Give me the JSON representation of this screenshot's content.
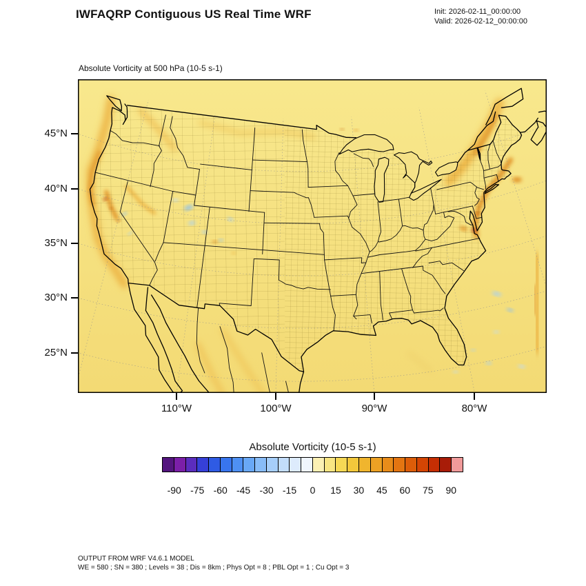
{
  "header": {
    "title": "IWFAQRP Contiguous US Real Time WRF",
    "init_label": "Init: 2026-02-11_00:00:00",
    "valid_label": "Valid: 2026-02-12_00:00:00"
  },
  "plot": {
    "subtitle": "Absolute Vorticity at 500 hPa   (10-5 s-1)"
  },
  "axes": {
    "lat_ticks": [
      "45°N",
      "40°N",
      "35°N",
      "30°N",
      "25°N"
    ],
    "lon_ticks": [
      "110°W",
      "100°W",
      "90°W",
      "80°W"
    ]
  },
  "colorbar": {
    "title": "Absolute Vorticity  (10-5 s-1)",
    "tick_labels": [
      "-90",
      "-75",
      "-60",
      "-45",
      "-30",
      "-15",
      "0",
      "15",
      "30",
      "45",
      "60",
      "75",
      "90"
    ],
    "colors": [
      "#53157E",
      "#7B1FA8",
      "#5B2DBE",
      "#3640D8",
      "#2F5BE4",
      "#3875EE",
      "#4E90F4",
      "#69A8F6",
      "#88BCF8",
      "#A6CEFA",
      "#C3DDFB",
      "#DDEBFC",
      "#EFF5FD",
      "#FBF0B4",
      "#F8E583",
      "#F6D855",
      "#F3C83B",
      "#F0B52E",
      "#ECA124",
      "#E88C1A",
      "#E37511",
      "#DC5D09",
      "#D44504",
      "#C52E03",
      "#A81C08",
      "#F09A9A"
    ]
  },
  "footer": {
    "line1": "OUTPUT FROM WRF V4.6.1 MODEL",
    "line2": "WE = 580 ; SN = 380 ; Levels = 38 ; Dis = 8km ; Phys Opt = 8 ; PBL Opt = 1 ; Cu Opt = 3"
  },
  "chart_data": {
    "type": "heatmap",
    "title": "Absolute Vorticity at 500 hPa",
    "units": "10-5 s-1",
    "region": "Contiguous US (WRF Lambert-conformal domain)",
    "lat_tick_values": [
      45,
      40,
      35,
      30,
      25
    ],
    "lon_tick_values": [
      -110,
      -100,
      -90,
      -80
    ],
    "colorbar": {
      "min": -97.5,
      "max": 97.5,
      "interval": 7.5,
      "tick_values": [
        -90,
        -75,
        -60,
        -45,
        -30,
        -15,
        0,
        15,
        30,
        45,
        60,
        75,
        90
      ]
    },
    "field_background_value_range": [
      0,
      15
    ],
    "field_summary": "Field is mostly +5 to +15 (pale yellow/gold) across the whole domain; positive bands of 15-45 (orange) along the Pacific coast, over northern California/Nevada, the interior Northwest, Quebec/New England, the mid-Atlantic coast and a SW-NE band in the far western Atlantic; weak negative patches (light blue, about -5 to -20) over Utah/Colorado, the Sierra Nevada and the subtropical western Atlantic."
  }
}
